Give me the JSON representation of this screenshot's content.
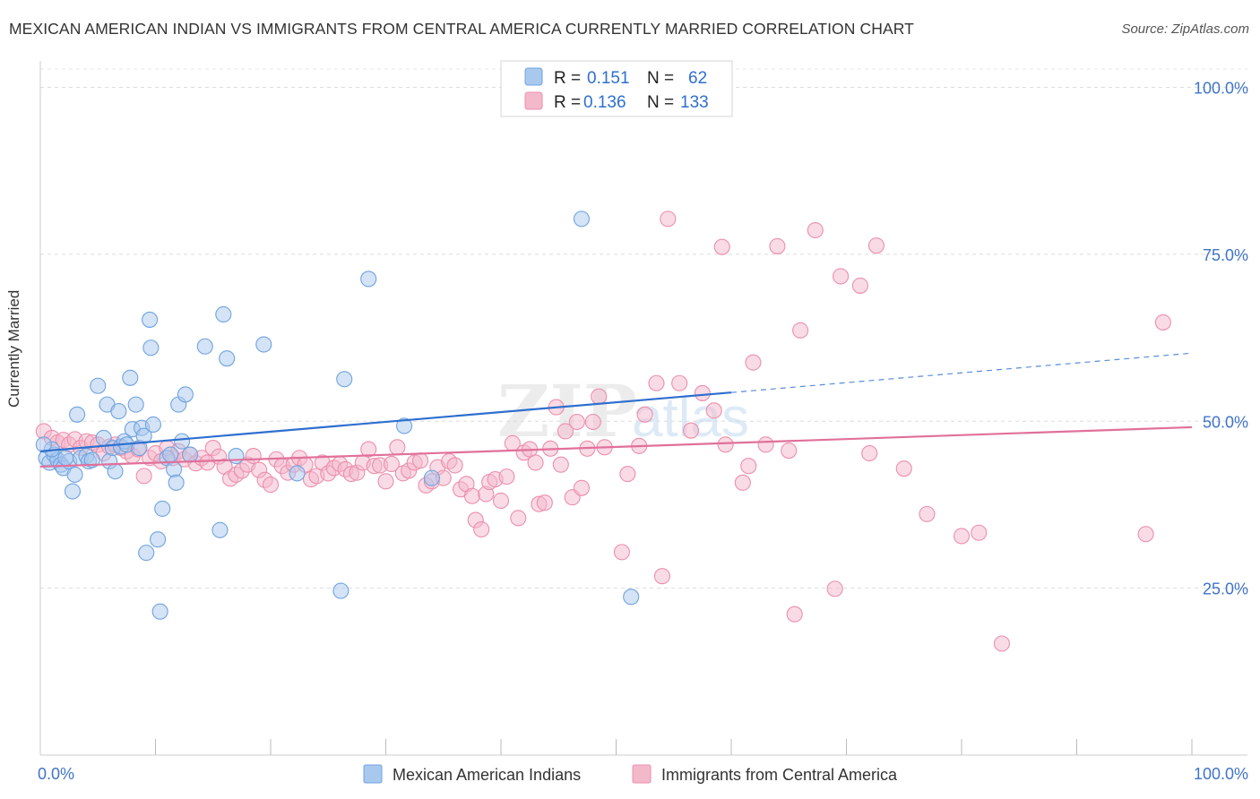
{
  "header": {
    "title": "MEXICAN AMERICAN INDIAN VS IMMIGRANTS FROM CENTRAL AMERICA CURRENTLY MARRIED CORRELATION CHART",
    "source": "Source: ZipAtlas.com"
  },
  "watermark": {
    "zip": "ZIP",
    "atlas": "atlas"
  },
  "legend_box": {
    "rows": [
      {
        "r_label": "R =",
        "r_value": "0.151",
        "n_label": "N =",
        "n_value": "62",
        "color": "#a9c8ee"
      },
      {
        "r_label": "R =",
        "r_value": "0.136",
        "n_label": "N =",
        "n_value": "133",
        "color": "#f4b8cb"
      }
    ]
  },
  "chart_data": {
    "type": "scatter",
    "title": "MEXICAN AMERICAN INDIAN VS IMMIGRANTS FROM CENTRAL AMERICA CURRENTLY MARRIED CORRELATION CHART",
    "xlabel": "",
    "ylabel": "Currently Married",
    "xlim": [
      0,
      100
    ],
    "ylim": [
      0,
      105
    ],
    "x_tick_labels": [
      "0.0%",
      "100.0%"
    ],
    "y_ticks": [
      25,
      50,
      75,
      100
    ],
    "y_tick_labels": [
      "25.0%",
      "50.0%",
      "75.0%",
      "100.0%"
    ],
    "grid": true,
    "legend_position": "bottom",
    "series": [
      {
        "name": "Mexican American Indians",
        "color": "#6fa3e0",
        "fill": "#a9c8ee",
        "line_color": "#2e6fcf",
        "trend": {
          "x": [
            0,
            60
          ],
          "y": [
            45.5,
            54.3
          ]
        },
        "trend_dashed": {
          "x": [
            60,
            100
          ],
          "y": [
            54.3,
            60.2
          ]
        },
        "points": [
          [
            0.5,
            44.5
          ],
          [
            0.8,
            43.8
          ],
          [
            1.2,
            45
          ],
          [
            1.5,
            44.2
          ],
          [
            1.8,
            43.5
          ],
          [
            2.0,
            43
          ],
          [
            2.5,
            44
          ],
          [
            2.8,
            39.5
          ],
          [
            3.0,
            42
          ],
          [
            3.2,
            51
          ],
          [
            3.5,
            44.5
          ],
          [
            4.0,
            44.8
          ],
          [
            4.2,
            44
          ],
          [
            4.5,
            44.2
          ],
          [
            5.0,
            55.3
          ],
          [
            5.5,
            47.5
          ],
          [
            5.8,
            52.5
          ],
          [
            6.0,
            44
          ],
          [
            6.3,
            46
          ],
          [
            6.5,
            42.5
          ],
          [
            6.8,
            51.5
          ],
          [
            7.0,
            46.2
          ],
          [
            7.3,
            47
          ],
          [
            7.5,
            46.5
          ],
          [
            7.8,
            56.5
          ],
          [
            8.0,
            48.8
          ],
          [
            8.3,
            52.5
          ],
          [
            8.6,
            46
          ],
          [
            8.8,
            49
          ],
          [
            9.0,
            47.8
          ],
          [
            9.2,
            30.3
          ],
          [
            9.5,
            65.2
          ],
          [
            9.6,
            61
          ],
          [
            9.8,
            49.5
          ],
          [
            10.2,
            32.3
          ],
          [
            10.4,
            21.5
          ],
          [
            10.6,
            36.9
          ],
          [
            11.0,
            44.5
          ],
          [
            11.3,
            45
          ],
          [
            11.6,
            42.8
          ],
          [
            11.8,
            40.8
          ],
          [
            12.0,
            52.5
          ],
          [
            12.3,
            47
          ],
          [
            12.6,
            54
          ],
          [
            13.0,
            45
          ],
          [
            14.3,
            61.2
          ],
          [
            15.6,
            33.7
          ],
          [
            15.9,
            66
          ],
          [
            16.2,
            59.4
          ],
          [
            17.0,
            44.8
          ],
          [
            19.4,
            61.5
          ],
          [
            22.3,
            42.2
          ],
          [
            26.1,
            24.6
          ],
          [
            26.4,
            56.3
          ],
          [
            28.5,
            71.3
          ],
          [
            31.6,
            49.3
          ],
          [
            34.0,
            41.5
          ],
          [
            47.0,
            80.3
          ],
          [
            51.3,
            23.7
          ],
          [
            1.0,
            45.8
          ],
          [
            0.3,
            46.5
          ],
          [
            2.2,
            44.5
          ]
        ]
      },
      {
        "name": "Immigrants from Central America",
        "color": "#ec8fab",
        "fill": "#f4b8cb",
        "line_color": "#e0709a",
        "trend": {
          "x": [
            0,
            100
          ],
          "y": [
            43.2,
            49.1
          ]
        },
        "points": [
          [
            0.3,
            48.5
          ],
          [
            1.0,
            47.5
          ],
          [
            1.5,
            46.8
          ],
          [
            2.0,
            47.2
          ],
          [
            2.5,
            46.5
          ],
          [
            3.0,
            47.3
          ],
          [
            3.5,
            46
          ],
          [
            4.0,
            47
          ],
          [
            4.5,
            46.8
          ],
          [
            5.0,
            46.5
          ],
          [
            5.5,
            45.2
          ],
          [
            6.0,
            46.2
          ],
          [
            6.5,
            46.5
          ],
          [
            7.0,
            46
          ],
          [
            7.5,
            45.5
          ],
          [
            8.0,
            44.8
          ],
          [
            8.5,
            45.8
          ],
          [
            9.0,
            41.8
          ],
          [
            9.5,
            44.5
          ],
          [
            10.0,
            45.2
          ],
          [
            10.5,
            44
          ],
          [
            11.0,
            46
          ],
          [
            11.5,
            44.5
          ],
          [
            12.0,
            45.5
          ],
          [
            12.5,
            44.3
          ],
          [
            13.0,
            45
          ],
          [
            13.5,
            43.7
          ],
          [
            14.0,
            44.5
          ],
          [
            14.5,
            43.8
          ],
          [
            15.0,
            46
          ],
          [
            15.5,
            44.7
          ],
          [
            16.0,
            43.2
          ],
          [
            16.5,
            41.4
          ],
          [
            17.0,
            42
          ],
          [
            17.5,
            42.6
          ],
          [
            18.0,
            43.5
          ],
          [
            18.5,
            44.8
          ],
          [
            19.0,
            42.7
          ],
          [
            19.5,
            41.2
          ],
          [
            20.0,
            40.5
          ],
          [
            20.5,
            44.3
          ],
          [
            21.0,
            43.3
          ],
          [
            21.5,
            42.3
          ],
          [
            22.0,
            43.5
          ],
          [
            22.5,
            44.5
          ],
          [
            23.0,
            43.5
          ],
          [
            23.5,
            41.3
          ],
          [
            24.0,
            41.8
          ],
          [
            24.5,
            43.8
          ],
          [
            25.0,
            42.2
          ],
          [
            25.5,
            43
          ],
          [
            26.0,
            43.6
          ],
          [
            26.5,
            42.8
          ],
          [
            27.0,
            42.1
          ],
          [
            27.5,
            42.3
          ],
          [
            28.0,
            43.8
          ],
          [
            28.5,
            45.8
          ],
          [
            29.0,
            43.3
          ],
          [
            29.5,
            43.4
          ],
          [
            30.0,
            41
          ],
          [
            30.5,
            43.6
          ],
          [
            31.0,
            46.1
          ],
          [
            31.5,
            42.2
          ],
          [
            32.0,
            42.6
          ],
          [
            32.5,
            43.8
          ],
          [
            33.0,
            44.1
          ],
          [
            33.5,
            40.4
          ],
          [
            34.0,
            41
          ],
          [
            34.5,
            43.1
          ],
          [
            35.0,
            41.5
          ],
          [
            35.5,
            44
          ],
          [
            36.0,
            43.4
          ],
          [
            36.5,
            39.8
          ],
          [
            37.0,
            40.6
          ],
          [
            37.5,
            38.8
          ],
          [
            37.8,
            35.2
          ],
          [
            38.3,
            33.8
          ],
          [
            38.7,
            39.1
          ],
          [
            39.0,
            40.9
          ],
          [
            39.5,
            41.3
          ],
          [
            40.0,
            38.1
          ],
          [
            40.5,
            41.7
          ],
          [
            41.0,
            46.7
          ],
          [
            41.5,
            35.5
          ],
          [
            42.0,
            45.3
          ],
          [
            42.5,
            45.8
          ],
          [
            43.0,
            43.8
          ],
          [
            43.3,
            37.6
          ],
          [
            43.8,
            37.8
          ],
          [
            44.3,
            45.9
          ],
          [
            44.8,
            52.1
          ],
          [
            45.2,
            43.5
          ],
          [
            45.6,
            48.5
          ],
          [
            46.2,
            38.6
          ],
          [
            46.6,
            49.9
          ],
          [
            47.0,
            40
          ],
          [
            47.5,
            45.9
          ],
          [
            48.0,
            49.9
          ],
          [
            48.5,
            53.7
          ],
          [
            49.0,
            46.1
          ],
          [
            50.5,
            30.4
          ],
          [
            51.0,
            42.1
          ],
          [
            52.0,
            46.3
          ],
          [
            52.5,
            51
          ],
          [
            53.5,
            55.7
          ],
          [
            54.0,
            26.8
          ],
          [
            54.5,
            80.3
          ],
          [
            55.5,
            55.7
          ],
          [
            56.5,
            48.6
          ],
          [
            57.5,
            54.2
          ],
          [
            58.5,
            51.6
          ],
          [
            59.2,
            76.1
          ],
          [
            59.5,
            46.5
          ],
          [
            61.0,
            40.8
          ],
          [
            61.5,
            43.3
          ],
          [
            61.9,
            58.8
          ],
          [
            63.0,
            46.5
          ],
          [
            64.0,
            76.2
          ],
          [
            65.0,
            45.6
          ],
          [
            65.5,
            21.1
          ],
          [
            66.0,
            63.6
          ],
          [
            67.3,
            78.6
          ],
          [
            69.0,
            24.9
          ],
          [
            69.5,
            71.7
          ],
          [
            71.2,
            70.3
          ],
          [
            72.6,
            76.3
          ],
          [
            72.0,
            45.2
          ],
          [
            75.0,
            42.9
          ],
          [
            77.0,
            36.1
          ],
          [
            80.0,
            32.8
          ],
          [
            81.5,
            33.3
          ],
          [
            83.5,
            16.7
          ],
          [
            96.0,
            33.1
          ],
          [
            97.5,
            64.8
          ]
        ]
      }
    ]
  }
}
